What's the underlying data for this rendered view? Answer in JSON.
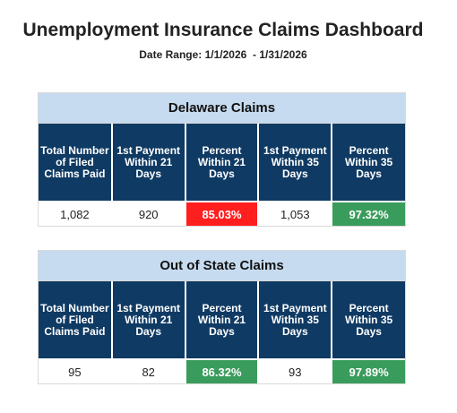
{
  "header": {
    "title": "Unemployment Insurance Claims Dashboard",
    "date_range": "Date Range: 1/1/2026  - 1/31/2026"
  },
  "columns": [
    "Total Number of Filed Claims Paid",
    "1st Payment Within 21 Days",
    "Percent Within 21 Days",
    "1st Payment Within 35 Days",
    "Percent Within 35 Days"
  ],
  "delaware": {
    "title": "Delaware Claims",
    "total": "1,082",
    "pay21": "920",
    "pct21": "85.03%",
    "pay35": "1,053",
    "pct35": "97.32%"
  },
  "out_of_state": {
    "title": "Out of State Claims",
    "total": "95",
    "pay21": "82",
    "pct21": "86.32%",
    "pay35": "93",
    "pct35": "97.89%"
  },
  "colors": {
    "header_blue": "#0f3a63",
    "panel_title_bg": "#c6dbef",
    "bad": "#ff1f1f",
    "good": "#3a9c5c"
  }
}
